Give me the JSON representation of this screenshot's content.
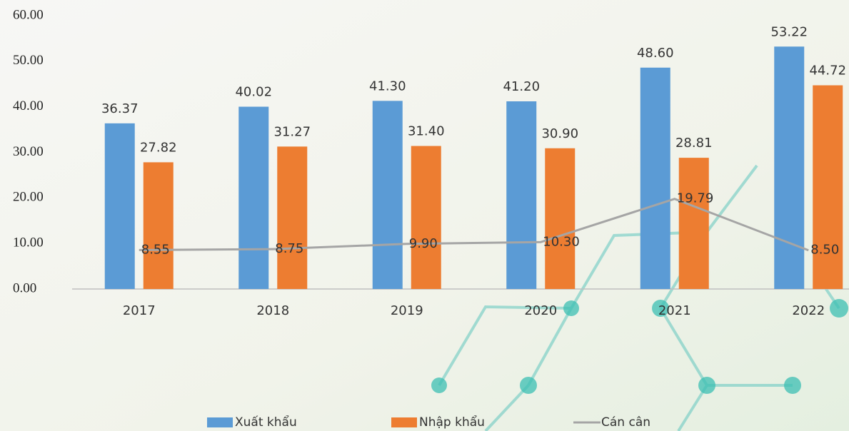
{
  "chart_data": {
    "type": "bar",
    "categories": [
      "2017",
      "2018",
      "2019",
      "2020",
      "2021",
      "2022"
    ],
    "series": [
      {
        "name": "Xuất khẩu",
        "color": "#5b9bd5",
        "values": [
          36.37,
          40.02,
          41.3,
          41.2,
          48.6,
          53.22
        ],
        "value_labels": [
          "36.37",
          "40.02",
          "41.30",
          "41.20",
          "48.60",
          "53.22"
        ]
      },
      {
        "name": "Nhập khẩu",
        "color": "#ed7d31",
        "values": [
          27.82,
          31.27,
          31.4,
          30.9,
          28.81,
          44.72
        ],
        "value_labels": [
          "27.82",
          "31.27",
          "31.40",
          "30.90",
          "28.81",
          "44.72"
        ]
      },
      {
        "name": "Cán cân",
        "type": "line",
        "color": "#a5a5a5",
        "values": [
          8.55,
          8.75,
          9.9,
          10.3,
          19.79,
          8.5
        ],
        "value_labels": [
          "8.55",
          "8.75",
          "9.90",
          "10.30",
          "19.79",
          "8.50"
        ]
      }
    ],
    "ylim": [
      0,
      60
    ],
    "yticks": [
      {
        "value": 0,
        "label": "0.00"
      },
      {
        "value": 10,
        "label": "10.00"
      },
      {
        "value": 20,
        "label": "20.00"
      },
      {
        "value": 30,
        "label": "30.00"
      },
      {
        "value": 40,
        "label": "40.00"
      },
      {
        "value": 50,
        "label": "50.00"
      },
      {
        "value": 60,
        "label": "60.00"
      }
    ],
    "legend": "bottom"
  }
}
